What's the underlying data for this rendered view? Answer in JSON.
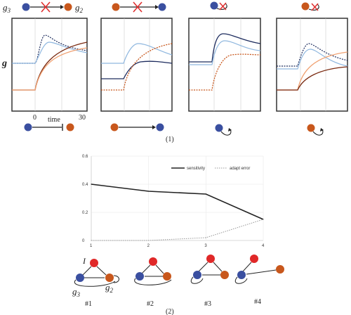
{
  "colors": {
    "blue": "#3a4fa0",
    "orange": "#c8571c",
    "red": "#e02828",
    "red_cross": "#e03030",
    "dark_line": "#222222",
    "light_blue": "#8fb7df",
    "dark_blue": "#1d2c5e",
    "light_orange": "#f0a070",
    "dark_orange": "#7a2a10",
    "panel_border": "#333333"
  },
  "top": {
    "label_g3": "g",
    "sub_g3": "3",
    "label_g2": "g",
    "sub_g2": "2",
    "y_label": "g",
    "x_label": "time",
    "x_tick_start": "0",
    "x_tick_end": "30",
    "part_label": "(1)"
  },
  "bottom": {
    "part_label": "(2)",
    "I_label": "I",
    "g3_label": "g",
    "g3_sub": "3",
    "g2_label": "g",
    "g2_sub": "2",
    "network_labels": [
      "#1",
      "#2",
      "#3",
      "#4"
    ]
  },
  "chart_data": {
    "type": "line",
    "x": [
      1,
      2,
      3,
      4
    ],
    "ylim": [
      0,
      0.6
    ],
    "yticks": [
      "0",
      "0.2",
      "0.4",
      "0.6"
    ],
    "xticks": [
      "1",
      "2",
      "3",
      "4"
    ],
    "legend_position": "top-right",
    "series": [
      {
        "name": "sensitivity",
        "values": [
          0.4,
          0.35,
          0.33,
          0.15
        ],
        "style": "solid"
      },
      {
        "name": "adapt error",
        "values": [
          0.0,
          0.0,
          0.02,
          0.15
        ],
        "style": "dotted"
      }
    ]
  }
}
